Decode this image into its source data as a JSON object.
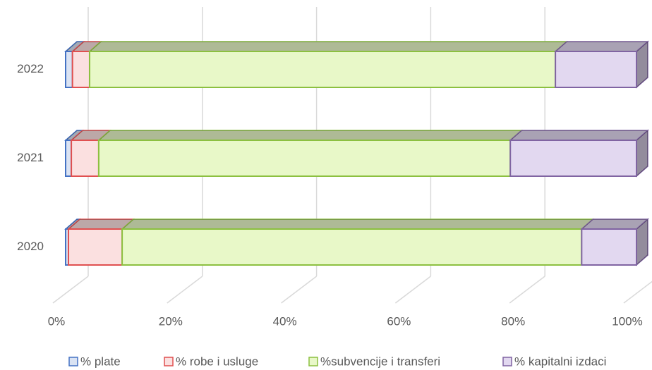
{
  "chart_data": {
    "type": "bar3d_stacked_horizontal",
    "categories": [
      "2020",
      "2021",
      "2022"
    ],
    "series": [
      {
        "name": "% plate",
        "color": "#dae3f3",
        "edge": "#4472c4",
        "values": [
          0.5,
          1,
          1.2
        ]
      },
      {
        "name": "% robe i usluge",
        "color": "#fbe0e0",
        "edge": "#e05050",
        "values": [
          9.4,
          4.8,
          3
        ]
      },
      {
        "name": "%subvencije i transferi",
        "color": "#e8f8c8",
        "edge": "#8cc040",
        "values": [
          80.5,
          72.1,
          81.6
        ]
      },
      {
        "name": "% kapitalni izdaci",
        "color": "#e2d8f0",
        "edge": "#8064a2",
        "values": [
          9.6,
          22.1,
          14.2
        ]
      }
    ],
    "xlim": [
      0,
      100
    ],
    "xticks": [
      {
        "value": 0,
        "label": "0%"
      },
      {
        "value": 20,
        "label": "20%"
      },
      {
        "value": 40,
        "label": "40%"
      },
      {
        "value": 60,
        "label": "60%"
      },
      {
        "value": 80,
        "label": "80%"
      },
      {
        "value": 100,
        "label": "100%"
      }
    ],
    "grid": true,
    "legend": "bottom"
  }
}
